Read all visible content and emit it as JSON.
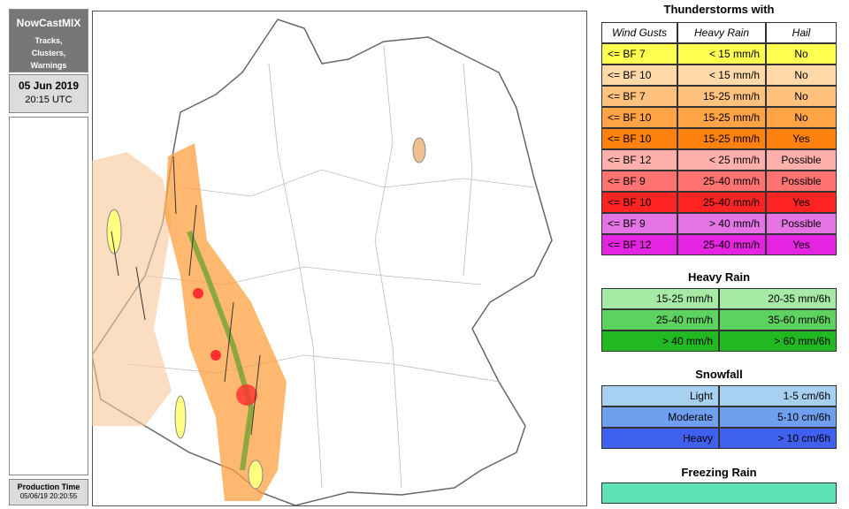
{
  "sidebar": {
    "title": "NowCastMIX",
    "subtitle": "Tracks, Clusters, Warnings",
    "date": "05 Jun 2019",
    "time": "20:15 UTC",
    "production_label": "Production Time",
    "production_time": "05/06/19 20:20:55"
  },
  "thunderstorms": {
    "title": "Thunderstorms with",
    "headers": [
      "Wind Gusts",
      "Heavy Rain",
      "Hail"
    ],
    "rows": [
      {
        "cells": [
          "<= BF 7",
          "< 15 mm/h",
          "No"
        ],
        "color": "#ffff50"
      },
      {
        "cells": [
          "<= BF 10",
          "< 15 mm/h",
          "No"
        ],
        "color": "#ffd9a8"
      },
      {
        "cells": [
          "<= BF 7",
          "15-25 mm/h",
          "No"
        ],
        "color": "#ffc27e"
      },
      {
        "cells": [
          "<= BF 10",
          "15-25 mm/h",
          "No"
        ],
        "color": "#ffa347"
      },
      {
        "cells": [
          "<= BF 10",
          "15-25 mm/h",
          "Yes"
        ],
        "color": "#ff8210"
      },
      {
        "cells": [
          "<= BF 12",
          "< 25 mm/h",
          "Possible"
        ],
        "color": "#ffb0ac"
      },
      {
        "cells": [
          "<= BF 9",
          "25-40 mm/h",
          "Possible"
        ],
        "color": "#ff7272"
      },
      {
        "cells": [
          "<= BF 10",
          "25-40 mm/h",
          "Yes"
        ],
        "color": "#ff2424"
      },
      {
        "cells": [
          "<= BF 9",
          "> 40 mm/h",
          "Possible"
        ],
        "color": "#e474e4"
      },
      {
        "cells": [
          "<= BF 12",
          "25-40 mm/h",
          "Yes"
        ],
        "color": "#e424e0"
      }
    ]
  },
  "heavy_rain": {
    "title": "Heavy Rain",
    "rows": [
      {
        "cells": [
          "15-25 mm/h",
          "20-35 mm/6h"
        ],
        "color": "#a6eaa6"
      },
      {
        "cells": [
          "25-40 mm/h",
          "35-60 mm/6h"
        ],
        "color": "#5ed25e"
      },
      {
        "cells": [
          "> 40 mm/h",
          "> 60 mm/6h"
        ],
        "color": "#22b822"
      }
    ]
  },
  "snowfall": {
    "title": "Snowfall",
    "rows": [
      {
        "cells": [
          "Light",
          "1-5 cm/6h"
        ],
        "color": "#a8d0f0"
      },
      {
        "cells": [
          "Moderate",
          "5-10 cm/6h"
        ],
        "color": "#6fa0f0"
      },
      {
        "cells": [
          "Heavy",
          "> 10 cm/6h"
        ],
        "color": "#4060f0"
      }
    ]
  },
  "freezing_rain": {
    "title": "Freezing Rain",
    "color": "#5ee2b4"
  }
}
